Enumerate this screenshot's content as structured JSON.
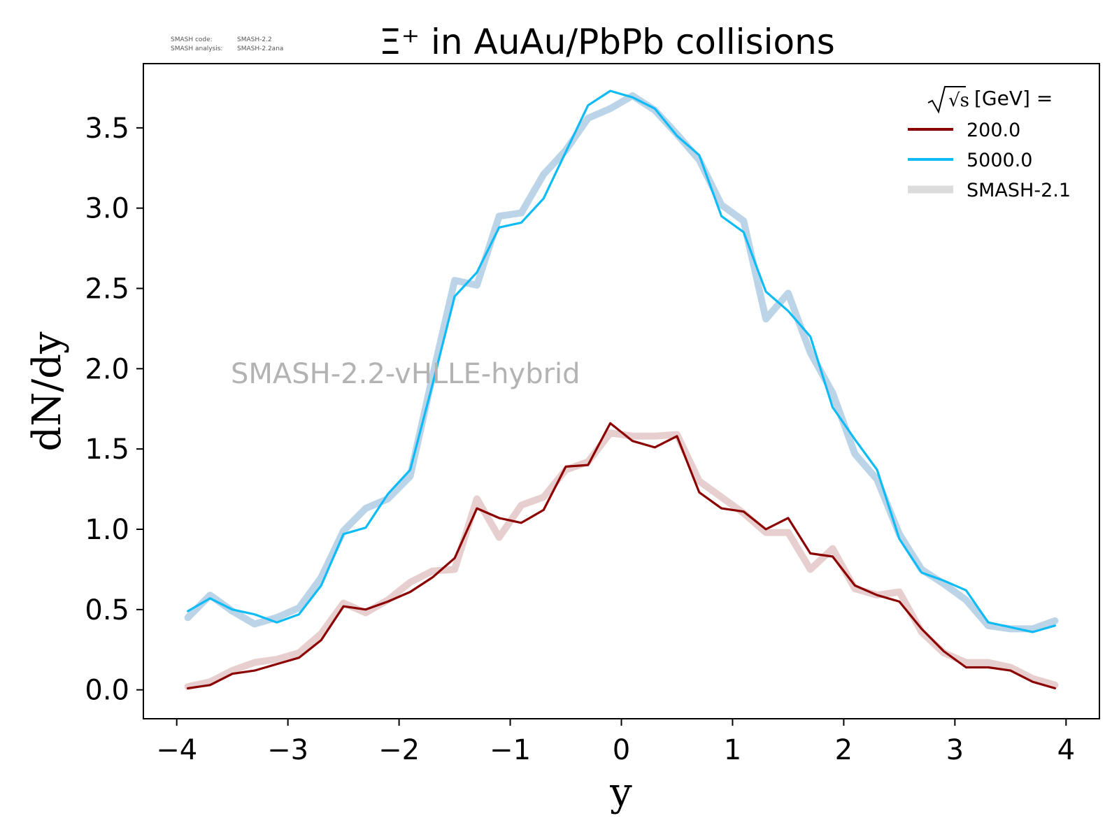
{
  "chart_data": {
    "type": "line",
    "title": "Ξ⁺ in AuAu/PbPb collisions",
    "xlabel": "y",
    "ylabel": "dN/dy",
    "xlim": [
      -4.3,
      4.3
    ],
    "ylim": [
      -0.18,
      3.9
    ],
    "xticks": [
      -4,
      -3,
      -2,
      -1,
      0,
      1,
      2,
      3,
      4
    ],
    "xtick_labels": [
      "−4",
      "−3",
      "−2",
      "−1",
      "0",
      "1",
      "2",
      "3",
      "4"
    ],
    "yticks": [
      0.0,
      0.5,
      1.0,
      1.5,
      2.0,
      2.5,
      3.0,
      3.5
    ],
    "ytick_labels": [
      "0.0",
      "0.5",
      "1.0",
      "1.5",
      "2.0",
      "2.5",
      "3.0",
      "3.5"
    ],
    "grid": false,
    "legend_position": "top-right",
    "watermark": "SMASH-2.2-vHLLE-hybrid",
    "code_info": {
      "code_label": "SMASH code:",
      "code_value": "SMASH-2.2",
      "analysis_label": "SMASH analysis:",
      "analysis_value": "SMASH-2.2ana"
    },
    "legend": {
      "title_prefix": "√s",
      "title_suffix": "[GeV] =",
      "entries": [
        "200.0",
        "5000.0",
        "SMASH-2.1"
      ]
    },
    "x": [
      -3.9,
      -3.7,
      -3.5,
      -3.3,
      -3.1,
      -2.9,
      -2.7,
      -2.5,
      -2.3,
      -2.1,
      -1.9,
      -1.7,
      -1.5,
      -1.3,
      -1.1,
      -0.9,
      -0.7,
      -0.5,
      -0.3,
      -0.1,
      0.1,
      0.3,
      0.5,
      0.7,
      0.9,
      1.1,
      1.3,
      1.5,
      1.7,
      1.9,
      2.1,
      2.3,
      2.5,
      2.7,
      2.9,
      3.1,
      3.3,
      3.5,
      3.7,
      3.9
    ],
    "series": [
      {
        "name": "200.0",
        "color": "#8b0000",
        "values": [
          0.01,
          0.03,
          0.1,
          0.12,
          0.16,
          0.2,
          0.31,
          0.52,
          0.5,
          0.55,
          0.61,
          0.7,
          0.82,
          1.13,
          1.07,
          1.04,
          1.12,
          1.39,
          1.4,
          1.66,
          1.55,
          1.51,
          1.58,
          1.23,
          1.13,
          1.11,
          1.0,
          1.07,
          0.85,
          0.83,
          0.65,
          0.59,
          0.55,
          0.38,
          0.24,
          0.14,
          0.14,
          0.12,
          0.05,
          0.01
        ]
      },
      {
        "name": "5000.0",
        "color": "#0fbbf5",
        "values": [
          0.49,
          0.57,
          0.5,
          0.47,
          0.42,
          0.47,
          0.65,
          0.97,
          1.01,
          1.22,
          1.37,
          1.9,
          2.45,
          2.6,
          2.88,
          2.91,
          3.06,
          3.35,
          3.64,
          3.73,
          3.69,
          3.62,
          3.45,
          3.33,
          2.95,
          2.85,
          2.48,
          2.36,
          2.2,
          1.76,
          1.56,
          1.37,
          0.94,
          0.73,
          0.68,
          0.62,
          0.42,
          0.39,
          0.36,
          0.4
        ]
      },
      {
        "name": "SMASH-2.1 (200.0)",
        "color": "#e8cfcf",
        "values": [
          0.02,
          0.05,
          0.12,
          0.17,
          0.19,
          0.23,
          0.35,
          0.54,
          0.48,
          0.56,
          0.67,
          0.74,
          0.75,
          1.19,
          0.95,
          1.15,
          1.2,
          1.37,
          1.42,
          1.6,
          1.58,
          1.58,
          1.59,
          1.3,
          1.2,
          1.1,
          0.98,
          0.98,
          0.75,
          0.88,
          0.63,
          0.59,
          0.61,
          0.36,
          0.23,
          0.17,
          0.17,
          0.14,
          0.07,
          0.03
        ]
      },
      {
        "name": "SMASH-2.1 (5000.0)",
        "color": "#bcd4e8",
        "values": [
          0.45,
          0.59,
          0.49,
          0.41,
          0.45,
          0.51,
          0.7,
          0.99,
          1.13,
          1.19,
          1.33,
          1.95,
          2.55,
          2.52,
          2.95,
          2.97,
          3.21,
          3.36,
          3.56,
          3.62,
          3.7,
          3.61,
          3.46,
          3.3,
          3.02,
          2.92,
          2.31,
          2.47,
          2.1,
          1.85,
          1.47,
          1.31,
          0.97,
          0.75,
          0.66,
          0.56,
          0.4,
          0.38,
          0.38,
          0.43
        ]
      }
    ]
  }
}
